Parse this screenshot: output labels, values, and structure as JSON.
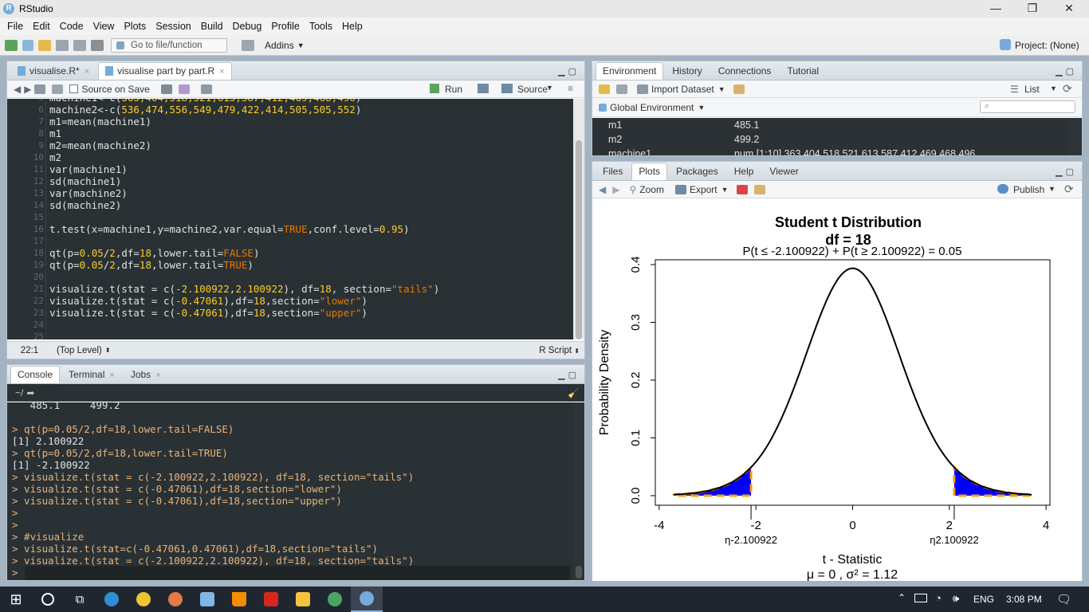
{
  "app": {
    "title": "RStudio",
    "logo": "R"
  },
  "menu": [
    "File",
    "Edit",
    "Code",
    "View",
    "Plots",
    "Session",
    "Build",
    "Debug",
    "Profile",
    "Tools",
    "Help"
  ],
  "toolbar": {
    "goto": "Go to file/function",
    "addins": "Addins",
    "project": "Project: (None)"
  },
  "editor": {
    "tabs": [
      "visualise.R*",
      "visualise part by part.R"
    ],
    "source_on_save": "Source on Save",
    "run": "Run",
    "source": "Source",
    "line_numbers": [
      "5",
      "6",
      "7",
      "8",
      "9",
      "10",
      "11",
      "12",
      "13",
      "14",
      "15",
      "16",
      "17",
      "18",
      "19",
      "20",
      "21",
      "22",
      "23",
      "24",
      "25"
    ],
    "lines": [
      [
        [
          "machine1<-c(",
          "fn"
        ],
        [
          "363,404,518,521,613,587,412,469,468,496",
          "num"
        ],
        [
          ")",
          "fn"
        ]
      ],
      [
        [
          "machine2<-c(",
          "fn"
        ],
        [
          "536,474,556,549,479,422,414,505,505,552",
          "num"
        ],
        [
          ")",
          "fn"
        ]
      ],
      [
        [
          "m1=mean(machine1)",
          "fn"
        ]
      ],
      [
        [
          "m1",
          "fn"
        ]
      ],
      [
        [
          "m2=mean(machine2)",
          "fn"
        ]
      ],
      [
        [
          "m2",
          "fn"
        ]
      ],
      [
        [
          "var(machine1)",
          "fn"
        ]
      ],
      [
        [
          "sd(machine1)",
          "fn"
        ]
      ],
      [
        [
          "var(machine2)",
          "fn"
        ]
      ],
      [
        [
          "sd(machine2)",
          "fn"
        ]
      ],
      [],
      [
        [
          "t.test(x=machine1,y=machine2,var.equal=",
          "fn"
        ],
        [
          "TRUE",
          "str"
        ],
        [
          ",conf.level=",
          "fn"
        ],
        [
          "0.95",
          "num"
        ],
        [
          ")",
          "fn"
        ]
      ],
      [],
      [
        [
          "qt(p=",
          "fn"
        ],
        [
          "0.05",
          "num"
        ],
        [
          "/",
          "fn"
        ],
        [
          "2",
          "num"
        ],
        [
          ",df=",
          "fn"
        ],
        [
          "18",
          "num"
        ],
        [
          ",lower.tail=",
          "fn"
        ],
        [
          "FALSE",
          "str"
        ],
        [
          ")",
          "fn"
        ]
      ],
      [
        [
          "qt(p=",
          "fn"
        ],
        [
          "0.05",
          "num"
        ],
        [
          "/",
          "fn"
        ],
        [
          "2",
          "num"
        ],
        [
          ",df=",
          "fn"
        ],
        [
          "18",
          "num"
        ],
        [
          ",lower.tail=",
          "fn"
        ],
        [
          "TRUE",
          "str"
        ],
        [
          ")",
          "fn"
        ]
      ],
      [],
      [
        [
          "visualize.t(stat = c(",
          "fn"
        ],
        [
          "-2.100922",
          "num"
        ],
        [
          ",",
          "fn"
        ],
        [
          "2.100922",
          "num"
        ],
        [
          "), df=",
          "fn"
        ],
        [
          "18",
          "num"
        ],
        [
          ", section=",
          "fn"
        ],
        [
          "\"tails\"",
          "str"
        ],
        [
          ")",
          "fn"
        ]
      ],
      [
        [
          "visualize.t(stat = c(",
          "fn"
        ],
        [
          "-0.47061",
          "num"
        ],
        [
          "),df=",
          "fn"
        ],
        [
          "18",
          "num"
        ],
        [
          ",section=",
          "fn"
        ],
        [
          "\"lower\"",
          "str"
        ],
        [
          ")",
          "fn"
        ]
      ],
      [
        [
          "visualize.t(stat = c(",
          "fn"
        ],
        [
          "-0.47061",
          "num"
        ],
        [
          "),df=",
          "fn"
        ],
        [
          "18",
          "num"
        ],
        [
          ",section=",
          "fn"
        ],
        [
          "\"upper\"",
          "str"
        ],
        [
          ")",
          "fn"
        ]
      ],
      [],
      []
    ],
    "status": {
      "pos": "22:1",
      "scope": "(Top Level)",
      "type": "R Script"
    }
  },
  "console": {
    "tabs": [
      "Console",
      "Terminal",
      "Jobs"
    ],
    "path": "~/",
    "lines": [
      [
        "   485.1     499.2",
        ""
      ],
      [
        "",
        ""
      ],
      [
        "> qt(p=0.05/2,df=18,lower.tail=FALSE)",
        "cmd"
      ],
      [
        "[1] 2.100922",
        ""
      ],
      [
        "> qt(p=0.05/2,df=18,lower.tail=TRUE)",
        "cmd"
      ],
      [
        "[1] -2.100922",
        ""
      ],
      [
        "> visualize.t(stat = c(-2.100922,2.100922), df=18, section=\"tails\")",
        "cmd"
      ],
      [
        "> visualize.t(stat = c(-0.47061),df=18,section=\"lower\")",
        "cmd"
      ],
      [
        "> visualize.t(stat = c(-0.47061),df=18,section=\"upper\")",
        "cmd"
      ],
      [
        ">",
        "cmd"
      ],
      [
        ">",
        "cmd"
      ],
      [
        "> #visualize",
        "cmd"
      ],
      [
        "> visualize.t(stat=c(-0.47061,0.47061),df=18,section=\"tails\")",
        "cmd"
      ],
      [
        "> visualize.t(stat = c(-2.100922,2.100922), df=18, section=\"tails\")",
        "cmd"
      ],
      [
        ">",
        "cmd"
      ]
    ]
  },
  "environment": {
    "tabs": [
      "Environment",
      "History",
      "Connections",
      "Tutorial"
    ],
    "import": "Import Dataset",
    "list": "List",
    "global": "Global Environment",
    "rows": [
      [
        "m1",
        "485.1"
      ],
      [
        "m2",
        "499.2"
      ],
      [
        "machine1",
        "num [1:10] 363 404 518 521 613 587 412 469 468 496"
      ]
    ]
  },
  "plots": {
    "tabs": [
      "Files",
      "Plots",
      "Packages",
      "Help",
      "Viewer"
    ],
    "zoom": "Zoom",
    "export": "Export",
    "publish": "Publish"
  },
  "chart_data": {
    "type": "line",
    "title": "Student t Distribution",
    "subtitle": "df  =  18",
    "subtitle2": "P(t ≤ -2.100922) + P(t ≥ 2.100922) = 0.05",
    "xlabel": "t - Statistic",
    "ylabel": "Probability Density",
    "xlim": [
      -4,
      4
    ],
    "ylim": [
      0,
      0.4
    ],
    "xticks": [
      "-4",
      "-2",
      "0",
      "2",
      "4"
    ],
    "yticks": [
      "0.0",
      "0.1",
      "0.2",
      "0.3",
      "0.4"
    ],
    "curve_range": [
      -3.7,
      3.7
    ],
    "df": 18,
    "shaded_lower": -2.100922,
    "shaded_upper": 2.100922,
    "fill_color": "#0000ff",
    "border_color": "#f5a000",
    "annot_left": "η-2.100922",
    "annot_right": "η2.100922",
    "footer": "μ =  0 , σ² =  1.12"
  },
  "taskbar": {
    "lang": "ENG",
    "time": "3:08 PM"
  }
}
